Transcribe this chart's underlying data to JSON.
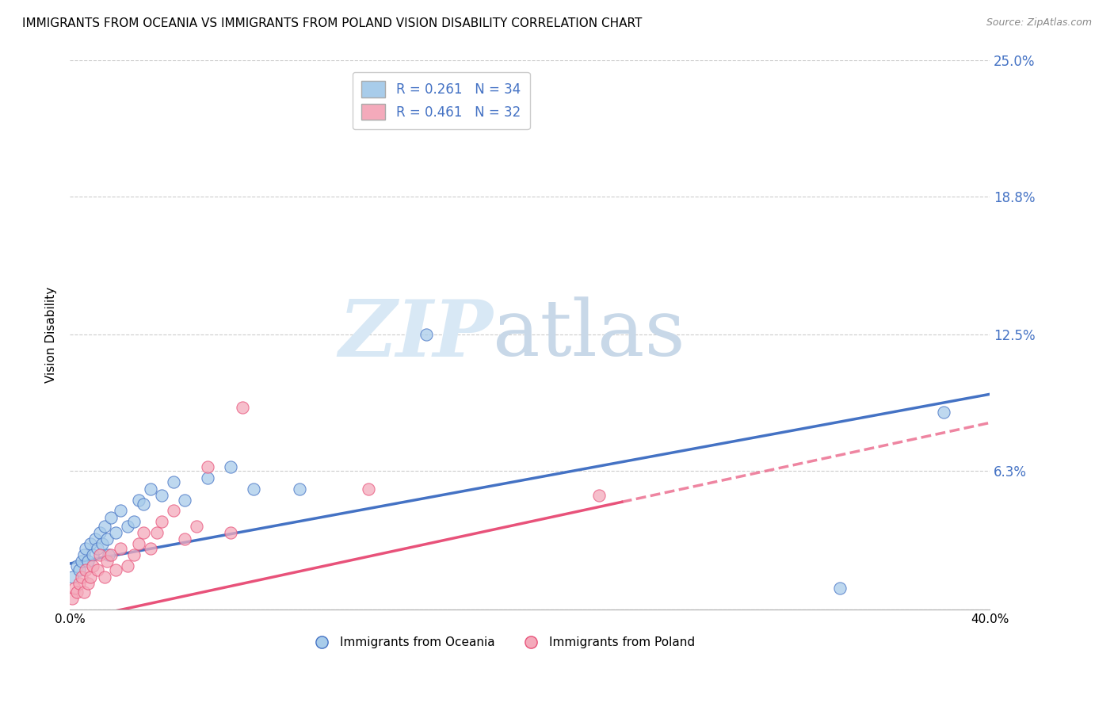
{
  "title": "IMMIGRANTS FROM OCEANIA VS IMMIGRANTS FROM POLAND VISION DISABILITY CORRELATION CHART",
  "source": "Source: ZipAtlas.com",
  "ylabel": "Vision Disability",
  "xlim": [
    0.0,
    0.4
  ],
  "ylim": [
    0.0,
    0.25
  ],
  "yticks_right": [
    0.063,
    0.125,
    0.188,
    0.25
  ],
  "ytick_right_labels": [
    "6.3%",
    "12.5%",
    "18.8%",
    "25.0%"
  ],
  "legend_label1": "Immigrants from Oceania",
  "legend_label2": "Immigrants from Poland",
  "R1": 0.261,
  "N1": 34,
  "R2": 0.461,
  "N2": 32,
  "color1": "#A8CCEA",
  "color2": "#F4AABB",
  "line_color1": "#4472C4",
  "line_color2": "#E8527A",
  "oceania_x": [
    0.001,
    0.003,
    0.004,
    0.005,
    0.006,
    0.007,
    0.008,
    0.009,
    0.01,
    0.011,
    0.012,
    0.013,
    0.014,
    0.015,
    0.016,
    0.017,
    0.018,
    0.02,
    0.022,
    0.025,
    0.028,
    0.03,
    0.032,
    0.035,
    0.04,
    0.045,
    0.05,
    0.06,
    0.07,
    0.08,
    0.1,
    0.155,
    0.335,
    0.38
  ],
  "oceania_y": [
    0.015,
    0.02,
    0.018,
    0.022,
    0.025,
    0.028,
    0.022,
    0.03,
    0.025,
    0.032,
    0.028,
    0.035,
    0.03,
    0.038,
    0.032,
    0.025,
    0.042,
    0.035,
    0.045,
    0.038,
    0.04,
    0.05,
    0.048,
    0.055,
    0.052,
    0.058,
    0.05,
    0.06,
    0.065,
    0.055,
    0.055,
    0.125,
    0.01,
    0.09
  ],
  "poland_x": [
    0.001,
    0.002,
    0.003,
    0.004,
    0.005,
    0.006,
    0.007,
    0.008,
    0.009,
    0.01,
    0.012,
    0.013,
    0.015,
    0.016,
    0.018,
    0.02,
    0.022,
    0.025,
    0.028,
    0.03,
    0.032,
    0.035,
    0.038,
    0.04,
    0.045,
    0.05,
    0.055,
    0.06,
    0.07,
    0.075,
    0.13,
    0.23
  ],
  "poland_y": [
    0.005,
    0.01,
    0.008,
    0.012,
    0.015,
    0.008,
    0.018,
    0.012,
    0.015,
    0.02,
    0.018,
    0.025,
    0.015,
    0.022,
    0.025,
    0.018,
    0.028,
    0.02,
    0.025,
    0.03,
    0.035,
    0.028,
    0.035,
    0.04,
    0.045,
    0.032,
    0.038,
    0.065,
    0.035,
    0.092,
    0.055,
    0.052
  ],
  "trend1_x0": 0.0,
  "trend1_y0": 0.021,
  "trend1_x1": 0.4,
  "trend1_y1": 0.098,
  "trend2_x0": 0.0,
  "trend2_y0": -0.005,
  "trend2_x1": 0.4,
  "trend2_y1": 0.085,
  "trend2_solid_end": 0.24
}
